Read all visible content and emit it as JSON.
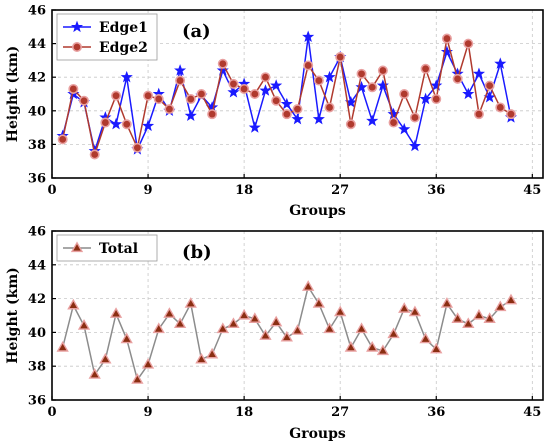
{
  "chart_data": [
    {
      "type": "line",
      "panel_label": "(a)",
      "xlabel": "Groups",
      "ylabel": "Height (km)",
      "xlim": [
        0,
        46
      ],
      "ylim": [
        36,
        46
      ],
      "xticks": [
        0,
        9,
        18,
        27,
        36,
        45
      ],
      "yticks": [
        36,
        38,
        40,
        42,
        44,
        46
      ],
      "grid": true,
      "legend_position": "top-left",
      "x": [
        1,
        2,
        3,
        4,
        5,
        6,
        7,
        8,
        9,
        10,
        11,
        12,
        13,
        14,
        15,
        16,
        17,
        18,
        19,
        20,
        21,
        22,
        23,
        24,
        25,
        26,
        27,
        28,
        29,
        30,
        31,
        32,
        33,
        34,
        35,
        36,
        37,
        38,
        39,
        40,
        41,
        42,
        43
      ],
      "series": [
        {
          "name": "Edge1",
          "color": "#1a1aff",
          "marker": "star",
          "values": [
            38.5,
            41.0,
            40.5,
            37.6,
            39.6,
            39.2,
            42.0,
            37.7,
            39.1,
            41.0,
            40.0,
            42.4,
            39.7,
            40.9,
            40.2,
            42.4,
            41.1,
            41.6,
            39.0,
            41.2,
            41.5,
            40.4,
            39.5,
            44.4,
            39.5,
            42.0,
            43.2,
            40.5,
            41.4,
            39.4,
            41.5,
            39.8,
            38.9,
            37.9,
            40.7,
            41.5,
            43.5,
            42.2,
            41.0,
            42.2,
            40.8,
            42.8,
            39.6
          ]
        },
        {
          "name": "Edge2",
          "color": "#b03a2e",
          "marker": "circle",
          "values": [
            38.3,
            41.3,
            40.6,
            37.4,
            39.3,
            40.9,
            39.2,
            37.8,
            40.9,
            40.7,
            40.1,
            41.8,
            40.7,
            41.0,
            39.8,
            42.8,
            41.6,
            41.3,
            41.0,
            42.0,
            40.6,
            39.8,
            40.1,
            42.7,
            41.8,
            40.2,
            43.2,
            39.2,
            42.2,
            41.4,
            42.4,
            39.3,
            41.0,
            39.6,
            42.5,
            40.7,
            44.3,
            41.9,
            44.0,
            39.8,
            41.5,
            40.2,
            39.8
          ]
        }
      ]
    },
    {
      "type": "line",
      "panel_label": "(b)",
      "xlabel": "Groups",
      "ylabel": "Height (km)",
      "xlim": [
        0,
        46
      ],
      "ylim": [
        36,
        46
      ],
      "xticks": [
        0,
        9,
        18,
        27,
        36,
        45
      ],
      "yticks": [
        36,
        38,
        40,
        42,
        44,
        46
      ],
      "grid": true,
      "legend_position": "top-left",
      "x": [
        1,
        2,
        3,
        4,
        5,
        6,
        7,
        8,
        9,
        10,
        11,
        12,
        13,
        14,
        15,
        16,
        17,
        18,
        19,
        20,
        21,
        22,
        23,
        24,
        25,
        26,
        27,
        28,
        29,
        30,
        31,
        32,
        33,
        34,
        35,
        36,
        37,
        38,
        39,
        40,
        41,
        42,
        43
      ],
      "series": [
        {
          "name": "Total",
          "color": "#8b2e12",
          "line_color": "#8c8c8c",
          "marker": "triangle",
          "values": [
            39.1,
            41.6,
            40.4,
            37.5,
            38.4,
            41.1,
            39.6,
            37.2,
            38.1,
            40.2,
            41.1,
            40.5,
            41.7,
            38.4,
            38.7,
            40.2,
            40.5,
            41.0,
            40.8,
            39.8,
            40.6,
            39.7,
            40.1,
            42.7,
            41.7,
            40.2,
            41.2,
            39.1,
            40.2,
            39.1,
            38.9,
            39.9,
            41.4,
            41.2,
            39.6,
            39.0,
            41.7,
            40.8,
            40.5,
            41.0,
            40.8,
            41.5,
            41.9
          ]
        }
      ]
    }
  ]
}
